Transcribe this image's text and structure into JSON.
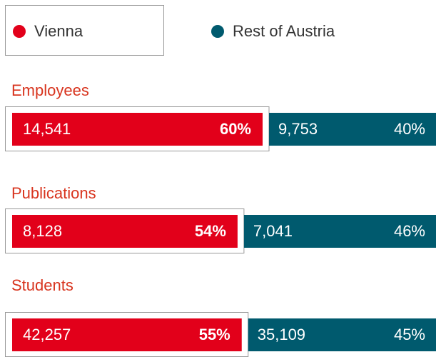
{
  "chart_data": {
    "type": "bar",
    "categories": [
      "Employees",
      "Publications",
      "Students"
    ],
    "series": [
      {
        "name": "Vienna",
        "color": "#e2001a",
        "values": [
          14541,
          8128,
          42257
        ],
        "value_labels": [
          "14,541",
          "8,128",
          "42,257"
        ],
        "shares": [
          60,
          54,
          55
        ],
        "share_labels": [
          "60%",
          "54%",
          "55%"
        ]
      },
      {
        "name": "Rest of Austria",
        "color": "#005a6e",
        "values": [
          9753,
          7041,
          35109
        ],
        "value_labels": [
          "9,753",
          "7,041",
          "35,109"
        ],
        "shares": [
          40,
          46,
          45
        ],
        "share_labels": [
          "40%",
          "46%",
          "45%"
        ]
      }
    ]
  }
}
